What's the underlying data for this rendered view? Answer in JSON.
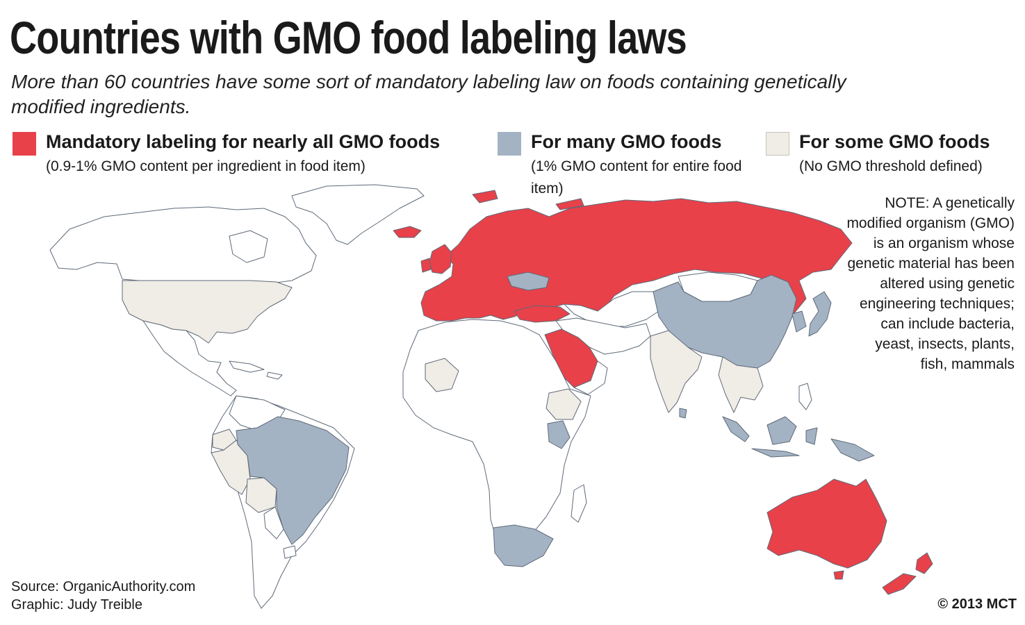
{
  "header": {
    "title": "Countries with GMO food labeling laws",
    "subtitle": "More than 60 countries have some sort of mandatory labeling law on foods containing genetically modified ingredients."
  },
  "legend": [
    {
      "label": "Mandatory labeling for nearly all GMO foods",
      "description": "(0.9-1% GMO content per ingredient in food item)",
      "color": "#e8414a"
    },
    {
      "label": "For many GMO foods",
      "description": "(1% GMO content for entire food item)",
      "color": "#a3b3c4"
    },
    {
      "label": "For some GMO foods",
      "description": "(No GMO threshold defined)",
      "color": "#f0ece6"
    }
  ],
  "colors": {
    "unregulated": "#ffffff",
    "water": "#ffffff",
    "border": "#5e6a78"
  },
  "note": "NOTE: A genetically modified organism (GMO) is an organism whose genetic material has been altered using genetic engineering techniques; can include bacteria, yeast, insects, plants, fish, mammals",
  "credits": {
    "source": "Source: OrganicAuthority.com",
    "graphic": "Graphic: Judy Treible"
  },
  "copyright": "© 2013 MCT"
}
